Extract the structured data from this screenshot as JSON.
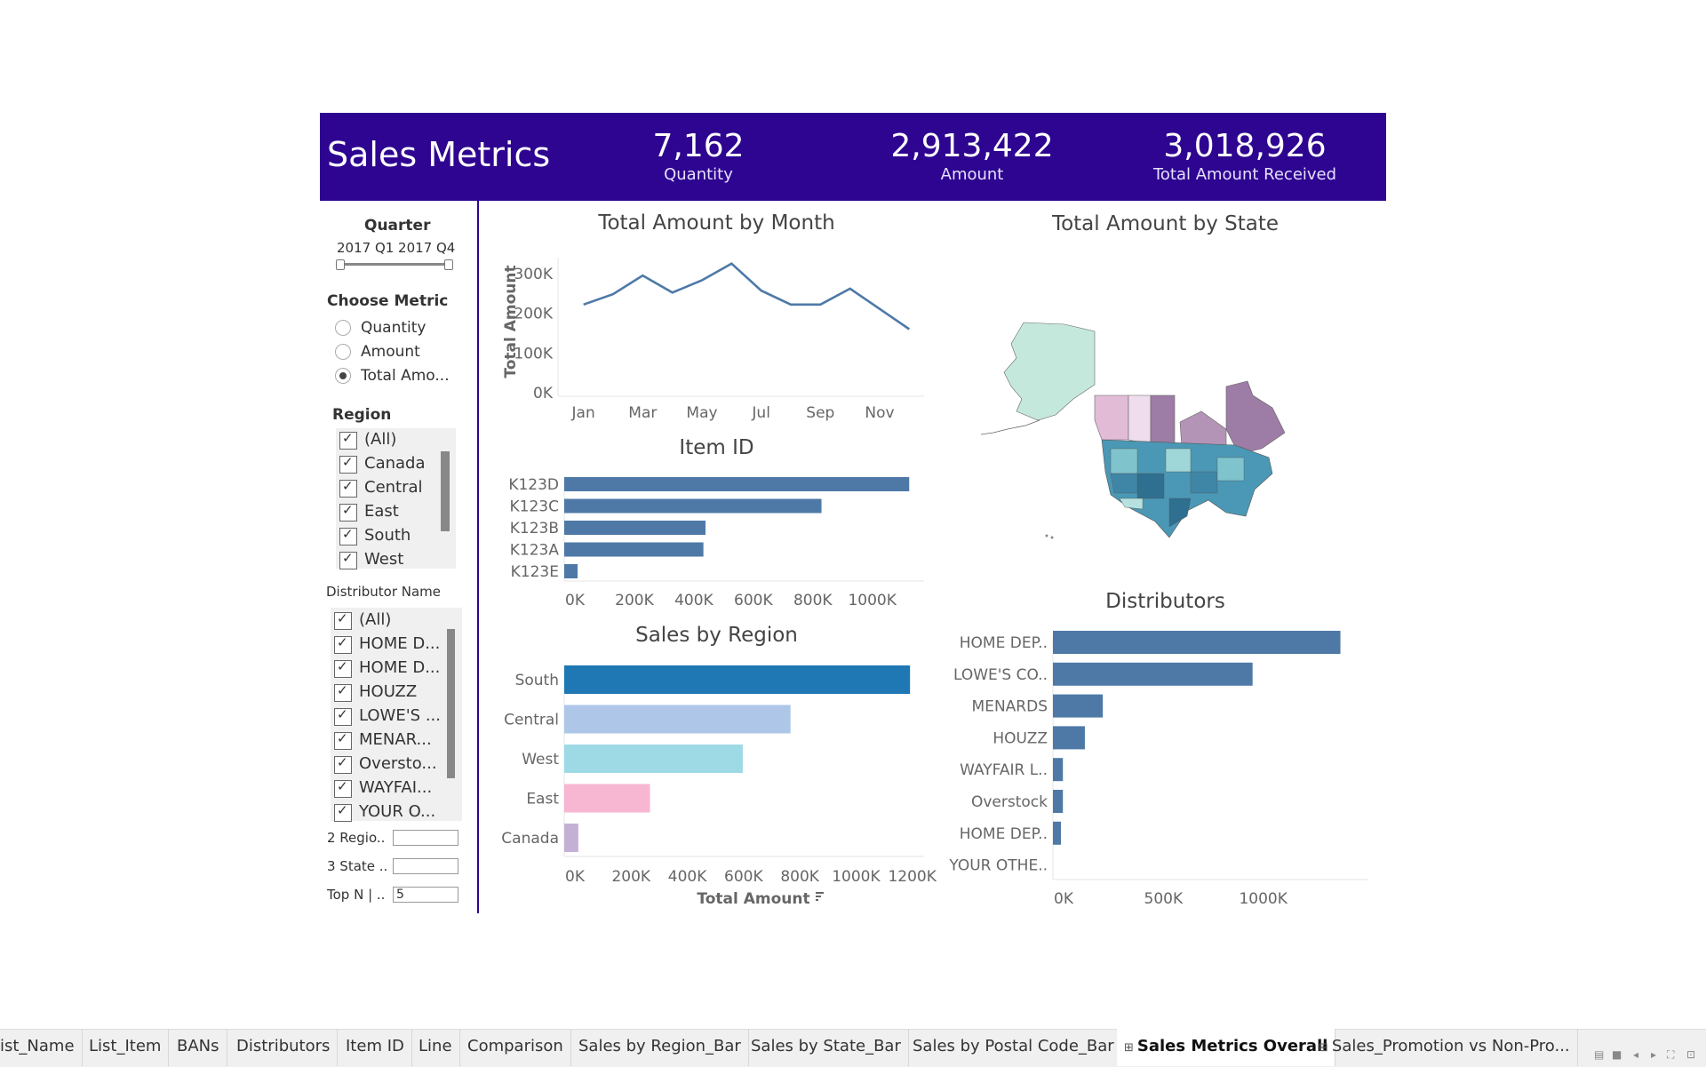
{
  "header": {
    "title": "Sales Metrics",
    "bans": [
      {
        "value": "7,162",
        "label": "Quantity"
      },
      {
        "value": "2,913,422",
        "label": "Amount"
      },
      {
        "value": "3,018,926",
        "label": "Total Amount Received"
      }
    ]
  },
  "filters": {
    "quarter": {
      "label": "Quarter",
      "range_text": "2017 Q1 2017 Q4"
    },
    "metric": {
      "label": "Choose Metric",
      "options": [
        "Quantity",
        "Amount",
        "Total Amo..."
      ],
      "selected": "Total Amo..."
    },
    "region": {
      "label": "Region",
      "items": [
        "(All)",
        "Canada",
        "Central",
        "East",
        "South",
        "West"
      ]
    },
    "distributor": {
      "label": "Distributor Name",
      "items": [
        "(All)",
        "HOME D...",
        "HOME D...",
        "HOUZZ",
        "LOWE'S ...",
        "MENAR...",
        "Oversto...",
        "WAYFAI...",
        "YOUR O..."
      ]
    },
    "params": [
      {
        "label": "2 Regio..",
        "value": ""
      },
      {
        "label": "3 State ..",
        "value": ""
      },
      {
        "label": "Top N | ..",
        "value": "5"
      }
    ]
  },
  "chart_data": [
    {
      "type": "line",
      "title": "Total Amount by Month",
      "ylabel": "Total Amount",
      "x": [
        "Jan",
        "Feb",
        "Mar",
        "Apr",
        "May",
        "Jun",
        "Jul",
        "Aug",
        "Sep",
        "Oct",
        "Nov",
        "Dec"
      ],
      "x_tick_labels": [
        "Jan",
        "Mar",
        "May",
        "Jul",
        "Sep",
        "Nov"
      ],
      "values": [
        222000,
        248000,
        295000,
        252000,
        283000,
        325000,
        257000,
        222000,
        222000,
        262000,
        211000,
        160000
      ],
      "ylim": [
        0,
        340000
      ],
      "y_ticks": [
        "0K",
        "100K",
        "200K",
        "300K"
      ],
      "color": "#4e79a7"
    },
    {
      "type": "bar",
      "orientation": "horizontal",
      "title": "Item ID",
      "categories": [
        "K123D",
        "K123C",
        "K123B",
        "K123A",
        "K123E"
      ],
      "values": [
        1160000,
        865000,
        475000,
        468000,
        45000
      ],
      "xlim": [
        0,
        1210000
      ],
      "x_ticks": [
        "0K",
        "200K",
        "400K",
        "600K",
        "800K",
        "1000K"
      ],
      "color": "#4e79a7"
    },
    {
      "type": "bar",
      "orientation": "horizontal",
      "title": "Sales by Region",
      "xlabel": "Total Amount",
      "categories": [
        "South",
        "Central",
        "West",
        "East",
        "Canada"
      ],
      "values": [
        1230000,
        805000,
        635000,
        305000,
        50000
      ],
      "colors": [
        "#1f77b4",
        "#aec7e8",
        "#9edae5",
        "#f7b6d2",
        "#c5b0d5"
      ],
      "xlim": [
        0,
        1280000
      ],
      "x_ticks": [
        "0K",
        "200K",
        "400K",
        "600K",
        "800K",
        "1000K",
        "1200K"
      ]
    },
    {
      "type": "bar",
      "orientation": "horizontal",
      "title": "Distributors",
      "categories": [
        "HOME DEP..",
        "LOWE'S CO..",
        "MENARDS",
        "HOUZZ",
        "WAYFAIR L..",
        "Overstock",
        "HOME DEP..",
        "YOUR OTHE.."
      ],
      "values": [
        1440000,
        1000000,
        250000,
        160000,
        50000,
        50000,
        40000,
        0
      ],
      "xlim": [
        0,
        1580000
      ],
      "x_ticks": [
        "0K",
        "500K",
        "1000K"
      ],
      "color": "#4e79a7"
    }
  ],
  "map": {
    "title": "Total Amount by State"
  },
  "tabs": [
    {
      "label": "ist_Name",
      "active": false,
      "icon": false
    },
    {
      "label": "List_Item",
      "active": false,
      "icon": false
    },
    {
      "label": "BANs",
      "active": false,
      "icon": false
    },
    {
      "label": "Distributors",
      "active": false,
      "icon": false
    },
    {
      "label": "Item ID",
      "active": false,
      "icon": false
    },
    {
      "label": "Line",
      "active": false,
      "icon": false
    },
    {
      "label": "Comparison",
      "active": false,
      "icon": false
    },
    {
      "label": "Sales by Region_Bar",
      "active": false,
      "icon": false
    },
    {
      "label": "Sales by State_Bar",
      "active": false,
      "icon": false
    },
    {
      "label": "Sales by Postal Code_Bar",
      "active": false,
      "icon": false
    },
    {
      "label": "Sales Metrics Overall",
      "active": true,
      "icon": true
    },
    {
      "label": "Sales_Promotion vs Non-Pro...",
      "active": false,
      "icon": true
    }
  ]
}
